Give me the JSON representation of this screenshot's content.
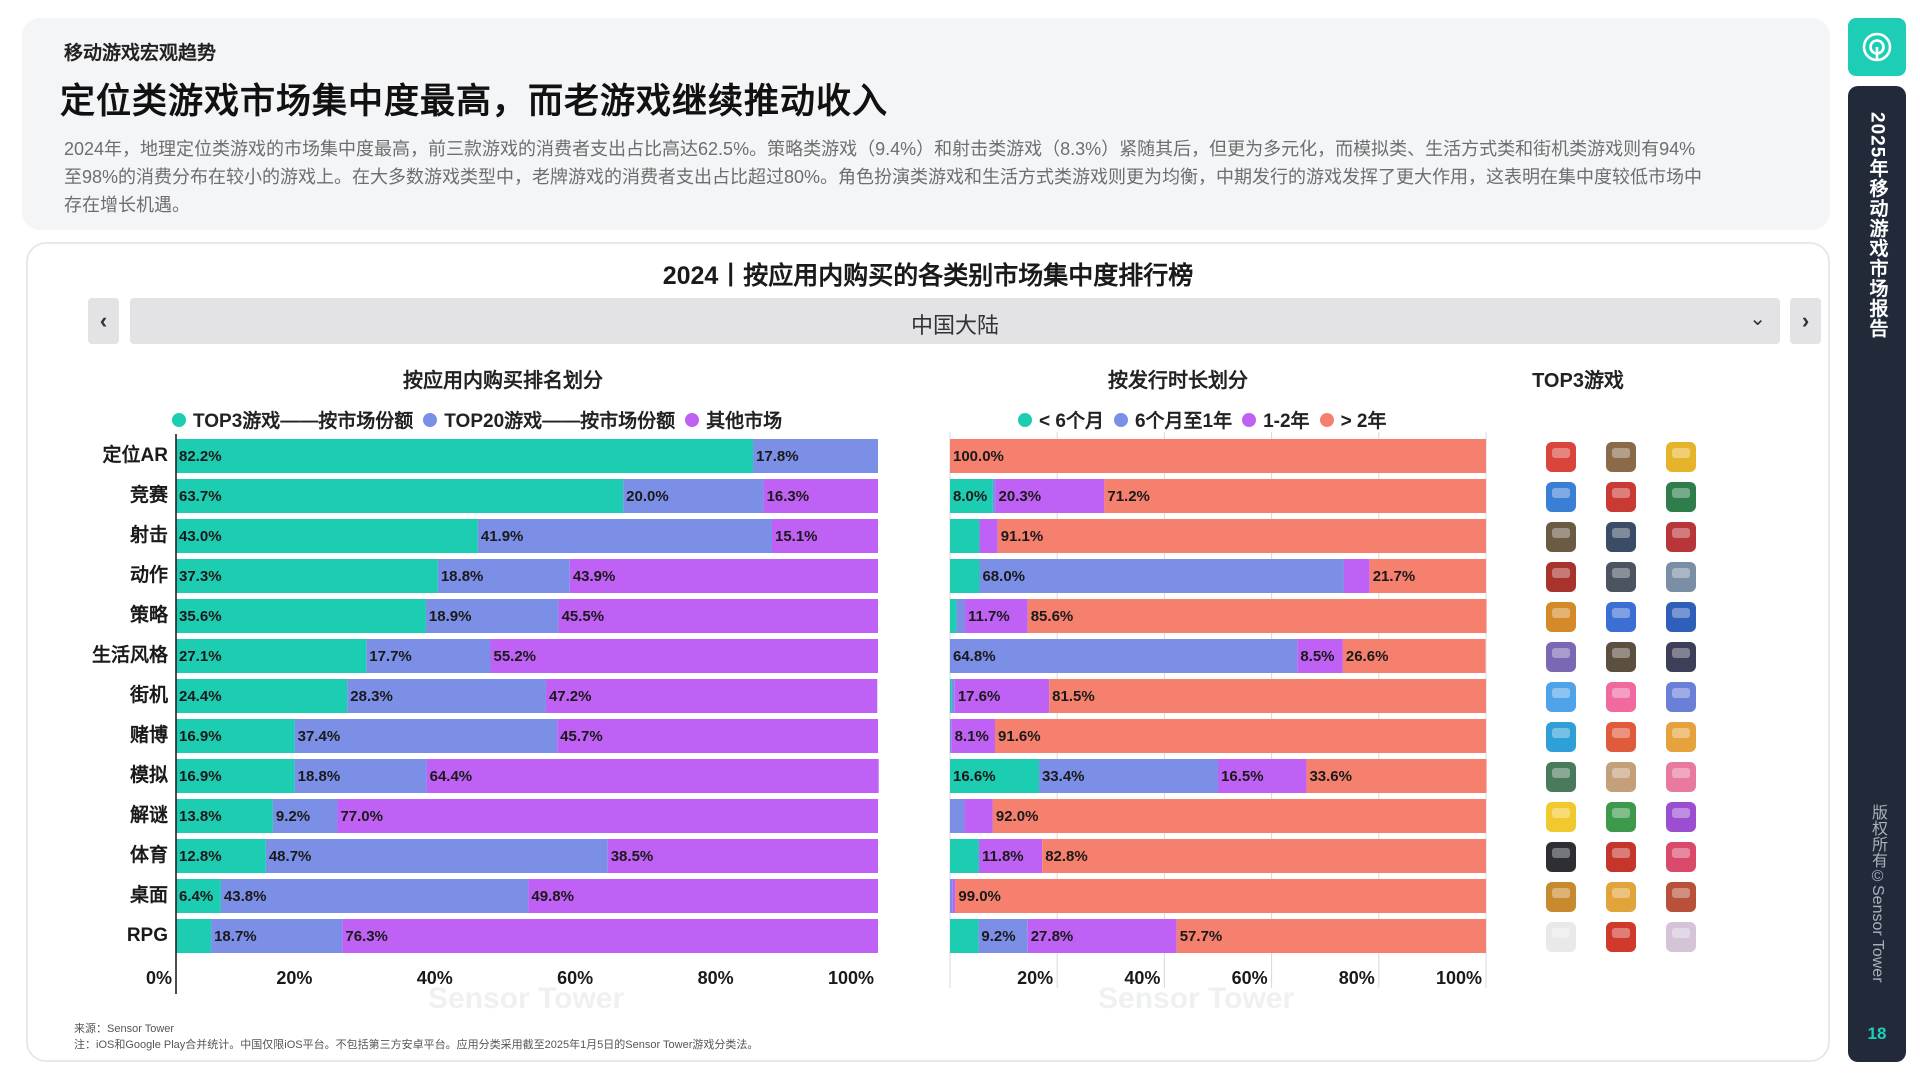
{
  "header": {
    "section": "移动游戏宏观趋势",
    "headline": "定位类游戏市场集中度最高，而老游戏继续推动收入",
    "summary": "2024年，地理定位类游戏的市场集中度最高，前三款游戏的消费者支出占比高达62.5%。策略类游戏（9.4%）和射击类游戏（8.3%）紧随其后，但更为多元化，而模拟类、生活方式类和街机类游戏则有94%至98%的消费分布在较小的游戏上。在大多数游戏类型中，老牌游戏的消费者支出占比超过80%。角色扮演类游戏和生活方式类游戏则更为均衡，中期发行的游戏发挥了更大作用，这表明在集中度较低市场中存在增长机遇。"
  },
  "chart_title": "2024丨按应用内购买的各类别市场集中度排行榜",
  "region": {
    "label": "中国大陆",
    "prev_icon": "chevron-left-icon",
    "next_icon": "chevron-right-icon"
  },
  "panels": {
    "left_title": "按应用内购买排名划分",
    "mid_title": "按发行时长划分",
    "right_title": "TOP3游戏"
  },
  "colors": {
    "teal": "#1ccdb2",
    "blue": "#7b8fe6",
    "purple": "#c061f5",
    "salmon": "#f6806e",
    "brand": "#1dcdb5",
    "sidebar": "#222a3a"
  },
  "chart_data": [
    {
      "type": "bar",
      "orientation": "horizontal-stacked-100",
      "title": "按应用内购买排名划分",
      "categories": [
        "定位AR",
        "竞赛",
        "射击",
        "动作",
        "策略",
        "生活风格",
        "街机",
        "赌博",
        "模拟",
        "解谜",
        "体育",
        "桌面",
        "RPG"
      ],
      "series": [
        {
          "name": "TOP3游戏——按市场份额",
          "color": "#1ccdb2",
          "values": [
            82.2,
            63.7,
            43.0,
            37.3,
            35.6,
            27.1,
            24.4,
            16.9,
            16.9,
            13.8,
            12.8,
            6.4,
            5.0
          ]
        },
        {
          "name": "TOP20游戏——按市场份额",
          "color": "#7b8fe6",
          "values": [
            17.8,
            20.0,
            41.9,
            18.8,
            18.9,
            17.7,
            28.3,
            37.4,
            18.8,
            9.2,
            48.7,
            43.8,
            18.7
          ]
        },
        {
          "name": "其他市场",
          "color": "#c061f5",
          "values": [
            0.0,
            16.3,
            15.1,
            43.9,
            45.5,
            55.2,
            47.2,
            45.7,
            64.4,
            77.0,
            38.5,
            49.8,
            76.3
          ]
        }
      ],
      "labels": [
        [
          "82.2%",
          "17.8%",
          ""
        ],
        [
          "63.7%",
          "20.0%",
          "16.3%"
        ],
        [
          "43.0%",
          "41.9%",
          "15.1%"
        ],
        [
          "37.3%",
          "18.8%",
          "43.9%"
        ],
        [
          "35.6%",
          "18.9%",
          "45.5%"
        ],
        [
          "27.1%",
          "17.7%",
          "55.2%"
        ],
        [
          "24.4%",
          "28.3%",
          "47.2%"
        ],
        [
          "16.9%",
          "37.4%",
          "45.7%"
        ],
        [
          "16.9%",
          "18.8%",
          "64.4%"
        ],
        [
          "13.8%",
          "9.2%",
          "77.0%"
        ],
        [
          "12.8%",
          "48.7%",
          "38.5%"
        ],
        [
          "6.4%",
          "43.8%",
          "49.8%"
        ],
        [
          "",
          "18.7%",
          "76.3%"
        ]
      ],
      "xticks": [
        "0%",
        "20%",
        "40%",
        "60%",
        "80%",
        "100%"
      ],
      "xlim": [
        0,
        100
      ],
      "grid": false
    },
    {
      "type": "bar",
      "orientation": "horizontal-stacked-100",
      "title": "按发行时长划分",
      "categories": [
        "定位AR",
        "竞赛",
        "射击",
        "动作",
        "策略",
        "生活风格",
        "街机",
        "赌博",
        "模拟",
        "解谜",
        "体育",
        "桌面",
        "RPG"
      ],
      "series": [
        {
          "name": "< 6个月",
          "color": "#1ccdb2",
          "values": [
            0.0,
            8.0,
            5.5,
            5.5,
            1.2,
            0.0,
            0.3,
            0.0,
            16.6,
            0.0,
            5.4,
            0.0,
            5.3
          ]
        },
        {
          "name": "6个月至1年",
          "color": "#7b8fe6",
          "values": [
            0.0,
            0.5,
            0.0,
            68.0,
            1.6,
            64.8,
            0.6,
            0.3,
            33.4,
            2.7,
            0.0,
            0.5,
            9.2
          ]
        },
        {
          "name": "1-2年",
          "color": "#c061f5",
          "values": [
            0.0,
            20.3,
            3.4,
            4.8,
            11.7,
            8.5,
            17.6,
            8.1,
            16.5,
            5.3,
            11.8,
            0.5,
            27.8
          ]
        },
        {
          "name": "> 2年",
          "color": "#f6806e",
          "values": [
            100.0,
            71.2,
            91.1,
            21.7,
            85.6,
            26.6,
            81.5,
            91.6,
            33.6,
            92.0,
            82.8,
            99.0,
            57.7
          ]
        }
      ],
      "labels": [
        [
          "",
          "",
          "",
          "100.0%"
        ],
        [
          "8.0%",
          "",
          "20.3%",
          "71.2%"
        ],
        [
          "",
          "",
          "",
          "91.1%"
        ],
        [
          "",
          "68.0%",
          "",
          "21.7%"
        ],
        [
          "",
          "",
          "11.7%",
          "85.6%"
        ],
        [
          "",
          "64.8%",
          "8.5%",
          "26.6%"
        ],
        [
          "",
          "",
          "17.6%",
          "81.5%"
        ],
        [
          "",
          "",
          "8.1%",
          "91.6%"
        ],
        [
          "16.6%",
          "33.4%",
          "16.5%",
          "33.6%"
        ],
        [
          "",
          "",
          "",
          "92.0%"
        ],
        [
          "",
          "",
          "11.8%",
          "82.8%"
        ],
        [
          "",
          "",
          "",
          "99.0%"
        ],
        [
          "",
          "9.2%",
          "27.8%",
          "57.7%"
        ]
      ],
      "xticks": [
        "20%",
        "40%",
        "60%",
        "80%",
        "100%"
      ],
      "xlim": [
        0,
        100
      ],
      "grid": true
    }
  ],
  "top3_icons": [
    [
      "#d9443b",
      "#8a6a48",
      "#e6b42a"
    ],
    [
      "#3a7fd6",
      "#c93a34",
      "#2f7d4a"
    ],
    [
      "#6b5a44",
      "#3b4c66",
      "#b8353a"
    ],
    [
      "#a8322c",
      "#4b5460",
      "#7a8fa6"
    ],
    [
      "#d58a2a",
      "#3b6fd3",
      "#2f5fb8"
    ],
    [
      "#7a68b5",
      "#5d4f40",
      "#3c3f57"
    ],
    [
      "#4fa3e8",
      "#f06aa0",
      "#6a7fd8"
    ],
    [
      "#2f9fd8",
      "#e05a3c",
      "#e6a23c"
    ],
    [
      "#4a7a5c",
      "#c4a07a",
      "#e87aa0"
    ],
    [
      "#f1c82e",
      "#3d9a4c",
      "#9b4fd0"
    ],
    [
      "#2d2f35",
      "#c4362c",
      "#d94a6a"
    ],
    [
      "#c88a2e",
      "#e0a43a",
      "#b8503a"
    ],
    [
      "#e9e9ea",
      "#d03a2c",
      "#d5c3d8"
    ]
  ],
  "footnotes": {
    "source": "来源：Sensor Tower",
    "note": "注：iOS和Google Play合并统计。中国仅限iOS平台。不包括第三方安卓平台。应用分类采用截至2025年1月5日的Sensor Tower游戏分类法。"
  },
  "watermark": "Sensor Tower",
  "sidebar": {
    "title": "2025年移动游戏市场报告",
    "copyright": "版权所有©Sensor Tower",
    "page": "18",
    "badge_icon": "sensor-tower-logo-icon"
  }
}
